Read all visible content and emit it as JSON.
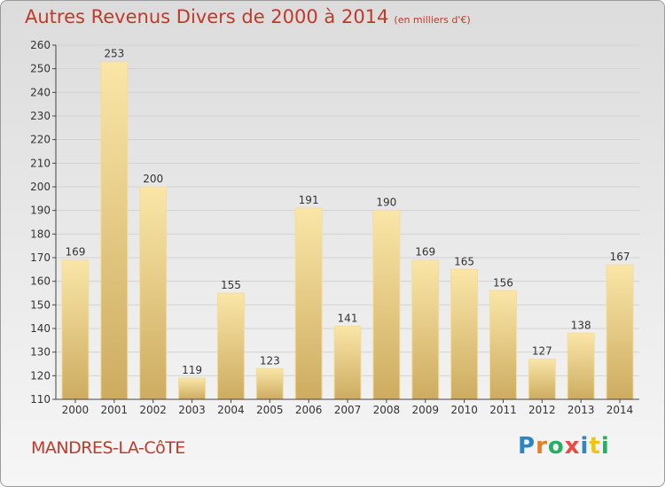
{
  "header": {
    "title": "Autres Revenus Divers de 2000 à 2014",
    "subtitle": "(en milliers d'€)"
  },
  "footer": {
    "place": "MANDRES-LA-CôTE",
    "logo": "Proxiti"
  },
  "colors": {
    "title": "#c0392b",
    "bar_light": "#f8e2a0",
    "bar_dark": "#cfae62"
  },
  "chart_data": {
    "type": "bar",
    "categories": [
      "2000",
      "2001",
      "2002",
      "2003",
      "2004",
      "2005",
      "2006",
      "2007",
      "2008",
      "2009",
      "2010",
      "2011",
      "2012",
      "2013",
      "2014"
    ],
    "values": [
      169,
      253,
      200,
      119,
      155,
      123,
      191,
      141,
      190,
      169,
      165,
      156,
      127,
      138,
      167
    ],
    "ylim": [
      110,
      260
    ],
    "yticks": [
      110,
      120,
      130,
      140,
      150,
      160,
      170,
      180,
      190,
      200,
      210,
      220,
      230,
      240,
      250,
      260
    ],
    "grid": true,
    "legend": "none"
  }
}
